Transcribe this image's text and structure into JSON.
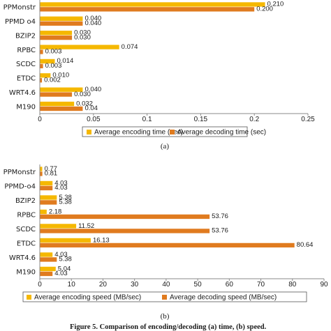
{
  "chart_data": [
    {
      "type": "bar",
      "orientation": "horizontal",
      "categories": [
        "PPMonstr",
        "PPMD o4",
        "BZIP2",
        "RPBC",
        "SCDC",
        "ETDC",
        "WRT4.6",
        "M190"
      ],
      "series": [
        {
          "name": "Average encoding time (sec)",
          "color": "#f5b800",
          "values": [
            0.21,
            0.04,
            0.03,
            0.074,
            0.014,
            0.01,
            0.04,
            0.032
          ],
          "labels": [
            "0.210",
            "0.040",
            "0.030",
            "0.074",
            "0.014",
            "0.010",
            "0.040",
            "0.032"
          ]
        },
        {
          "name": "Average decoding time (sec)",
          "color": "#e07b1f",
          "values": [
            0.2,
            0.04,
            0.03,
            0.003,
            0.003,
            0.002,
            0.03,
            0.04
          ],
          "labels": [
            "0.200",
            "0.040",
            "0.030",
            "0.003",
            "0.003",
            "0.002",
            "0.030",
            "0.04"
          ]
        }
      ],
      "xlim": [
        0,
        0.25
      ],
      "xticks": [
        "0",
        "0.05",
        "0.1",
        "0.15",
        "0.2",
        "0.25"
      ],
      "tick_values": [
        0,
        0.05,
        0.1,
        0.15,
        0.2,
        0.25
      ],
      "legend_position": "bottom",
      "grid": false,
      "caption": "(a)"
    },
    {
      "type": "bar",
      "orientation": "horizontal",
      "categories": [
        "PPMonstr",
        "PPMD-o4",
        "BZIP2",
        "RPBC",
        "SCDC",
        "ETDC",
        "WRT4.6",
        "M190"
      ],
      "series": [
        {
          "name": "Average encoding speed (MB/sec)",
          "color": "#f5b800",
          "values": [
            0.77,
            4.03,
            5.38,
            2.18,
            11.52,
            16.13,
            4.03,
            5.04
          ],
          "labels": [
            "0.77",
            "4.03",
            "5.38",
            "2.18",
            "11.52",
            "16.13",
            "4.03",
            "5.04"
          ]
        },
        {
          "name": "Average decoding speed (MB/sec)",
          "color": "#e07b1f",
          "values": [
            0.81,
            4.03,
            5.38,
            53.76,
            53.76,
            80.64,
            5.38,
            4.03
          ],
          "labels": [
            "0.81",
            "4.03",
            "5.38",
            "53.76",
            "53.76",
            "80.64",
            "5.38",
            "4.03"
          ]
        }
      ],
      "xlim": [
        0,
        90
      ],
      "xticks": [
        "0",
        "10",
        "20",
        "30",
        "40",
        "50",
        "60",
        "70",
        "80",
        "90"
      ],
      "tick_values": [
        0,
        10,
        20,
        30,
        40,
        50,
        60,
        70,
        80,
        90
      ],
      "legend_position": "bottom",
      "grid": false,
      "caption": "(b)"
    }
  ],
  "figure_caption": "Figure 5. Comparison of encoding/decoding (a) time, (b) speed."
}
